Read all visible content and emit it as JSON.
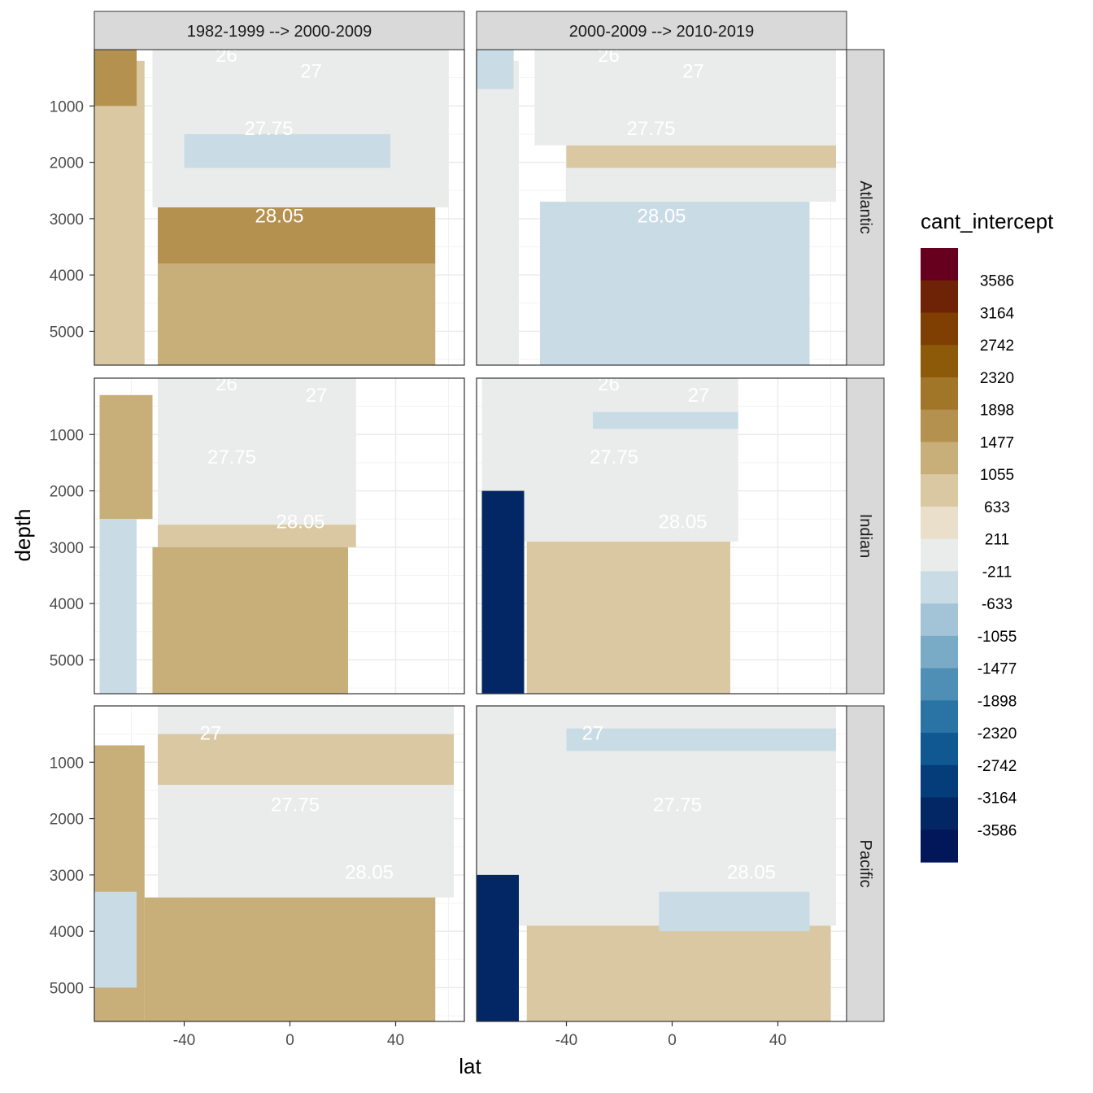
{
  "chart_data": {
    "type": "heatmap",
    "title": "",
    "xlabel": "lat",
    "ylabel": "depth",
    "x_ticks": [
      -40,
      0,
      40
    ],
    "y_ticks": [
      1000,
      2000,
      3000,
      4000,
      5000
    ],
    "xlim": [
      -74,
      66
    ],
    "ylim": [
      5600,
      0
    ],
    "y_reversed": true,
    "grid": true,
    "columns": [
      "1982-1999 --> 2000-2009",
      "2000-2009 --> 2010-2019"
    ],
    "rows": [
      "Atlantic",
      "Indian",
      "Pacific"
    ],
    "legend": {
      "title": "cant_intercept",
      "position": "right",
      "labels": [
        "3586",
        "3164",
        "2742",
        "2320",
        "1898",
        "1477",
        "1055",
        "633",
        "211",
        "-211",
        "-633",
        "-1055",
        "-1477",
        "-1898",
        "-2320",
        "-2742",
        "-3164",
        "-3586"
      ],
      "colors": [
        "#67001F",
        "#6E2206",
        "#7F3F02",
        "#8C5A09",
        "#A27628",
        "#B5914F",
        "#C8AE79",
        "#D9C8A2",
        "#E9DFCB",
        "#EAECEB",
        "#C9DCE6",
        "#A3C4D7",
        "#79ABC7",
        "#4F8FB6",
        "#2A73A5",
        "#0F5891",
        "#053D7A",
        "#032765",
        "#021759"
      ]
    },
    "contour_labels": [
      "26",
      "27",
      "27.75",
      "28.05"
    ],
    "panels": [
      {
        "row": "Atlantic",
        "column": "1982-1999 --> 2000-2009",
        "layers": [
          {
            "value": 633,
            "lat": [
              -74,
              -55
            ],
            "depth": [
              200,
              5600
            ]
          },
          {
            "value": 1477,
            "lat": [
              -74,
              -58
            ],
            "depth": [
              0,
              1000
            ]
          },
          {
            "value": -211,
            "lat": [
              -52,
              60
            ],
            "depth": [
              0,
              2800
            ]
          },
          {
            "value": -633,
            "lat": [
              -40,
              38
            ],
            "depth": [
              1500,
              2100
            ]
          },
          {
            "value": 1477,
            "lat": [
              -50,
              55
            ],
            "depth": [
              2800,
              3800
            ]
          },
          {
            "value": 1055,
            "lat": [
              -50,
              55
            ],
            "depth": [
              3800,
              5600
            ]
          }
        ],
        "contour_label_positions": [
          [
            -24,
            100,
            "26"
          ],
          [
            8,
            380,
            "27"
          ],
          [
            -8,
            1400,
            "27.75"
          ],
          [
            -4,
            2950,
            "28.05"
          ]
        ]
      },
      {
        "row": "Atlantic",
        "column": "2000-2009 --> 2010-2019",
        "layers": [
          {
            "value": -211,
            "lat": [
              -74,
              -58
            ],
            "depth": [
              200,
              5600
            ]
          },
          {
            "value": -633,
            "lat": [
              -74,
              -60
            ],
            "depth": [
              0,
              700
            ]
          },
          {
            "value": -211,
            "lat": [
              -52,
              62
            ],
            "depth": [
              0,
              1700
            ]
          },
          {
            "value": 633,
            "lat": [
              -40,
              62
            ],
            "depth": [
              1700,
              2100
            ]
          },
          {
            "value": -211,
            "lat": [
              -40,
              62
            ],
            "depth": [
              2100,
              2700
            ]
          },
          {
            "value": -633,
            "lat": [
              -50,
              52
            ],
            "depth": [
              2700,
              5600
            ]
          }
        ],
        "contour_label_positions": [
          [
            -24,
            100,
            "26"
          ],
          [
            8,
            380,
            "27"
          ],
          [
            -8,
            1400,
            "27.75"
          ],
          [
            -4,
            2950,
            "28.05"
          ]
        ]
      },
      {
        "row": "Indian",
        "column": "1982-1999 --> 2000-2009",
        "layers": [
          {
            "value": 1055,
            "lat": [
              -72,
              -52
            ],
            "depth": [
              300,
              2500
            ]
          },
          {
            "value": -633,
            "lat": [
              -72,
              -58
            ],
            "depth": [
              2500,
              5600
            ]
          },
          {
            "value": -211,
            "lat": [
              -50,
              25
            ],
            "depth": [
              0,
              2600
            ]
          },
          {
            "value": 633,
            "lat": [
              -50,
              25
            ],
            "depth": [
              2600,
              3000
            ]
          },
          {
            "value": 1055,
            "lat": [
              -52,
              22
            ],
            "depth": [
              3000,
              5600
            ]
          }
        ],
        "contour_label_positions": [
          [
            -24,
            100,
            "26"
          ],
          [
            10,
            300,
            "27"
          ],
          [
            -22,
            1400,
            "27.75"
          ],
          [
            4,
            2550,
            "28.05"
          ]
        ]
      },
      {
        "row": "Indian",
        "column": "2000-2009 --> 2010-2019",
        "layers": [
          {
            "value": -211,
            "lat": [
              -72,
              25
            ],
            "depth": [
              0,
              2900
            ]
          },
          {
            "value": -3586,
            "lat": [
              -72,
              -56
            ],
            "depth": [
              2000,
              5600
            ]
          },
          {
            "value": 633,
            "lat": [
              -55,
              22
            ],
            "depth": [
              2900,
              5600
            ]
          },
          {
            "value": -633,
            "lat": [
              -30,
              25
            ],
            "depth": [
              600,
              900
            ]
          }
        ],
        "contour_label_positions": [
          [
            -24,
            100,
            "26"
          ],
          [
            10,
            300,
            "27"
          ],
          [
            -22,
            1400,
            "27.75"
          ],
          [
            4,
            2550,
            "28.05"
          ]
        ]
      },
      {
        "row": "Pacific",
        "column": "1982-1999 --> 2000-2009",
        "layers": [
          {
            "value": 1055,
            "lat": [
              -74,
              -55
            ],
            "depth": [
              700,
              5600
            ]
          },
          {
            "value": -211,
            "lat": [
              -50,
              62
            ],
            "depth": [
              0,
              3400
            ]
          },
          {
            "value": 633,
            "lat": [
              -50,
              62
            ],
            "depth": [
              500,
              1400
            ]
          },
          {
            "value": 1055,
            "lat": [
              -55,
              55
            ],
            "depth": [
              3400,
              5600
            ]
          },
          {
            "value": -633,
            "lat": [
              -74,
              -58
            ],
            "depth": [
              3300,
              5000
            ]
          }
        ],
        "contour_label_positions": [
          [
            -30,
            480,
            "27"
          ],
          [
            2,
            1750,
            "27.75"
          ],
          [
            30,
            2950,
            "28.05"
          ]
        ]
      },
      {
        "row": "Pacific",
        "column": "2000-2009 --> 2010-2019",
        "layers": [
          {
            "value": -211,
            "lat": [
              -74,
              62
            ],
            "depth": [
              0,
              3900
            ]
          },
          {
            "value": -633,
            "lat": [
              -40,
              62
            ],
            "depth": [
              400,
              800
            ]
          },
          {
            "value": -3586,
            "lat": [
              -74,
              -58
            ],
            "depth": [
              3000,
              5600
            ]
          },
          {
            "value": 633,
            "lat": [
              -55,
              60
            ],
            "depth": [
              3900,
              5600
            ]
          },
          {
            "value": -633,
            "lat": [
              -5,
              52
            ],
            "depth": [
              3300,
              4000
            ]
          }
        ],
        "contour_label_positions": [
          [
            -30,
            480,
            "27"
          ],
          [
            2,
            1750,
            "27.75"
          ],
          [
            30,
            2950,
            "28.05"
          ]
        ]
      }
    ]
  }
}
